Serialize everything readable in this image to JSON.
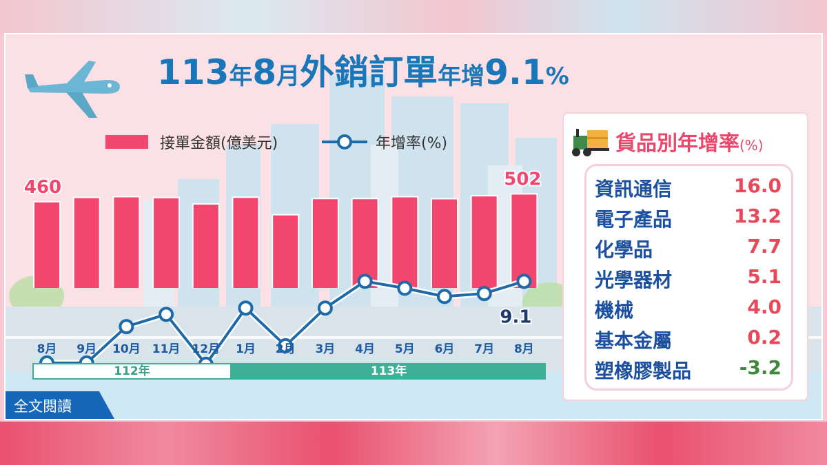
{
  "title": {
    "part1": "113",
    "part2": "年",
    "part3": "8",
    "part4": "月",
    "part5": "外銷訂單",
    "part6": "年增",
    "part7": "9.1",
    "part8": "%"
  },
  "legend": {
    "bar_label": "接單金額(億美元)",
    "line_label": "年增率(%)"
  },
  "chart_data": {
    "type": "bar",
    "categories": [
      "8月",
      "9月",
      "10月",
      "11月",
      "12月",
      "1月",
      "2月",
      "3月",
      "4月",
      "5月",
      "6月",
      "7月",
      "8月"
    ],
    "series": [
      {
        "name": "接單金額(億美元)",
        "type": "bar",
        "values": [
          460,
          483,
          487,
          482,
          448,
          484,
          390,
          477,
          477,
          487,
          476,
          492,
          502
        ]
      },
      {
        "name": "年增率(%)",
        "type": "line",
        "values": [
          -15.6,
          -15.6,
          -4.6,
          -0.9,
          -16.0,
          1.0,
          -10.4,
          1.0,
          9.1,
          7.0,
          4.5,
          5.4,
          9.1
        ]
      }
    ],
    "labels": {
      "first_bar": "460",
      "last_bar": "502",
      "last_line": "9.1"
    },
    "year_groups": [
      {
        "label": "112年",
        "start": 0,
        "end": 4
      },
      {
        "label": "113年",
        "start": 5,
        "end": 12
      }
    ],
    "colors": {
      "bar": "#f2466f",
      "line": "#1e6aa8",
      "marker_fill": "#ffffff"
    }
  },
  "panel": {
    "title": "貨品別年增率",
    "unit": "(%)",
    "items": [
      {
        "name": "資訊通信",
        "value": "16.0"
      },
      {
        "name": "電子產品",
        "value": "13.2"
      },
      {
        "name": "化學品",
        "value": "7.7"
      },
      {
        "name": "光學器材",
        "value": "5.1"
      },
      {
        "name": "機械",
        "value": "4.0"
      },
      {
        "name": "基本金屬",
        "value": "0.2"
      },
      {
        "name": "塑橡膠製品",
        "value": "-3.2"
      }
    ],
    "positive_color": "#e8485a",
    "negative_color": "#3d8a3d"
  },
  "read_button": {
    "label": "全文閱讀"
  }
}
